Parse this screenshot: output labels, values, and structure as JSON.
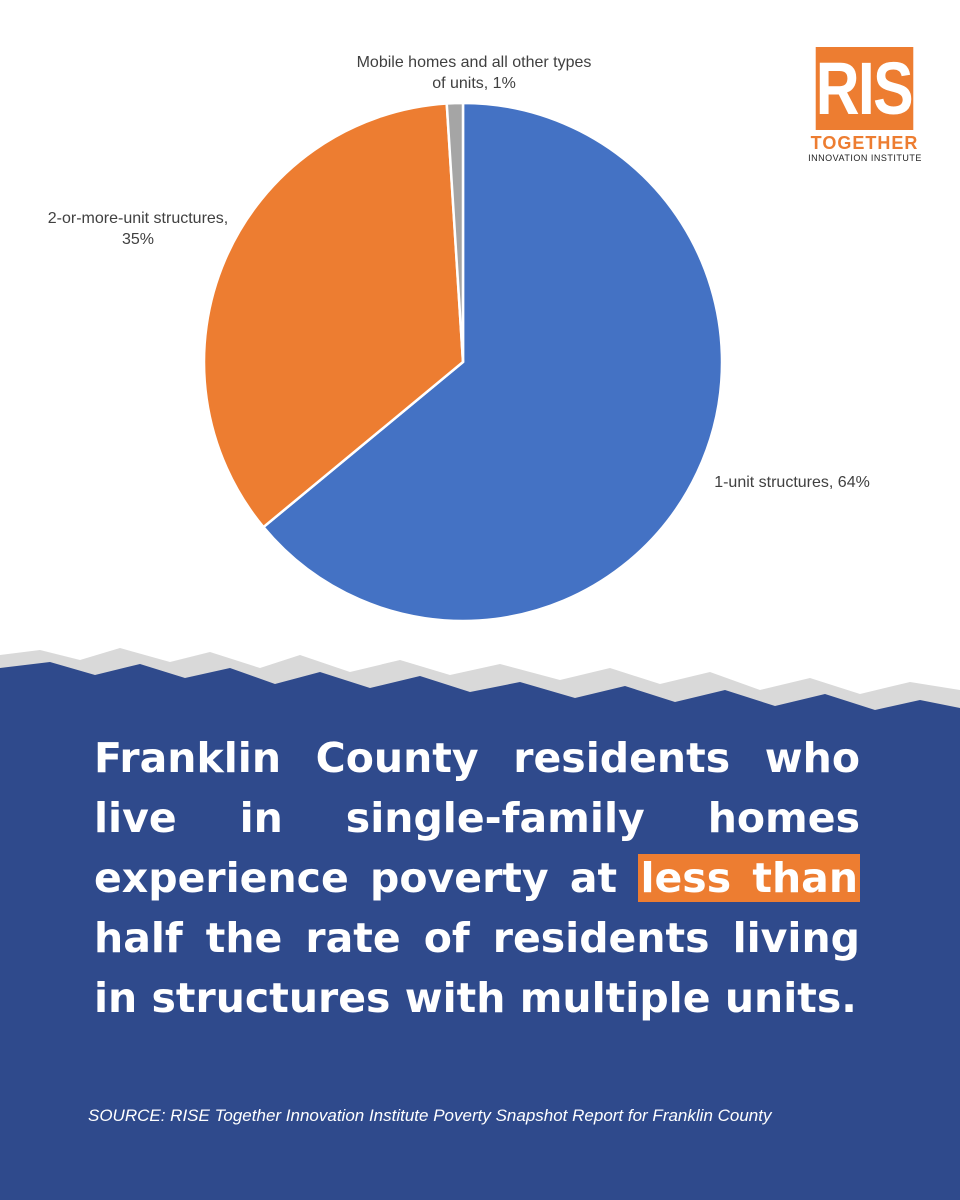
{
  "chart_data": {
    "type": "pie",
    "values": [
      64,
      35,
      1
    ],
    "value_labels": [
      "1-unit structures, 64%",
      "2-or-more-unit structures, 35%",
      "Mobile homes and all other types of units, 1%"
    ],
    "colors": [
      "#4472c4",
      "#ed7d31",
      "#a5a5a5"
    ]
  },
  "logo": {
    "word": "RISE",
    "line1": "TOGETHER",
    "line2": "INNOVATION INSTITUTE"
  },
  "headline": {
    "before": "Franklin County residents who live in single-family homes experience poverty at",
    "highlight": "less than",
    "after": "half the rate of residents living in structures with multiple units."
  },
  "source": "SOURCE: RISE Together Innovation Institute Poverty Snapshot Report for Franklin County"
}
